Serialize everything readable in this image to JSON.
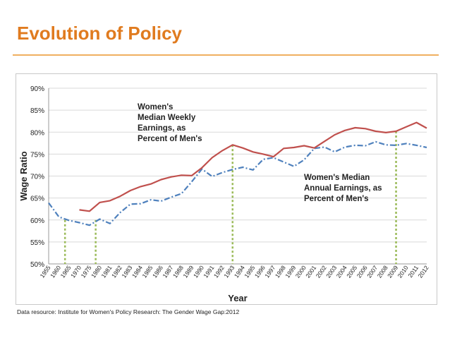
{
  "slide": {
    "title": "Evolution of Policy",
    "source": "Data resource: Institute for Women's Policy Research: The Gender Wage Gap:2012"
  },
  "colors": {
    "title": "#e07b1f",
    "weekly": "#c0504d",
    "annual": "#4f81bd",
    "marker": "#9bbb59",
    "grid": "#d9d9d9"
  },
  "chart_data": {
    "type": "line",
    "title": "",
    "xlabel": "Year",
    "ylabel": "Wage Ratio",
    "ylim": [
      50,
      90
    ],
    "yticks": [
      "50%",
      "55%",
      "60%",
      "65%",
      "70%",
      "75%",
      "80%",
      "85%",
      "90%"
    ],
    "grid": true,
    "categories": [
      "1955",
      "1960",
      "1965",
      "1970",
      "1975",
      "1980",
      "1981",
      "1982",
      "1983",
      "1984",
      "1985",
      "1986",
      "1987",
      "1988",
      "1989",
      "1990",
      "1991",
      "1992",
      "1993",
      "1994",
      "1995",
      "1996",
      "1997",
      "1998",
      "1999",
      "2000",
      "2001",
      "2002",
      "2003",
      "2004",
      "2005",
      "2006",
      "2007",
      "2008",
      "2009",
      "2010",
      "2011",
      "2012"
    ],
    "series": [
      {
        "name": "Women's Median Weekly Earnings, as Percent of Men's",
        "style": "solid",
        "values": [
          null,
          null,
          null,
          62.3,
          62.0,
          64.0,
          64.4,
          65.4,
          66.7,
          67.6,
          68.2,
          69.2,
          69.8,
          70.2,
          70.1,
          71.9,
          74.2,
          75.8,
          77.1,
          76.4,
          75.5,
          75.0,
          74.4,
          76.3,
          76.5,
          76.9,
          76.4,
          77.9,
          79.4,
          80.4,
          81.0,
          80.8,
          80.2,
          79.9,
          80.2,
          81.2,
          82.2,
          80.9
        ]
      },
      {
        "name": "Women's Median Annual Earnings, as Percent of Men's",
        "style": "dash-dot",
        "values": [
          63.9,
          60.7,
          59.9,
          59.4,
          58.8,
          60.2,
          59.2,
          61.7,
          63.6,
          63.7,
          64.6,
          64.3,
          65.2,
          66.0,
          68.7,
          71.6,
          69.9,
          70.8,
          71.5,
          72.0,
          71.4,
          73.8,
          74.2,
          73.2,
          72.2,
          73.7,
          76.3,
          76.6,
          75.5,
          76.6,
          77.0,
          76.9,
          77.8,
          77.1,
          77.0,
          77.4,
          77.0,
          76.5
        ]
      }
    ],
    "annotations": [
      {
        "lines": [
          "Women's",
          "Median Weekly",
          "Earnings, as",
          "Percent of Men's"
        ]
      },
      {
        "lines": [
          "Women's Median",
          "Annual Earnings, as",
          "Percent of Men's"
        ]
      }
    ],
    "markers": [
      "1963",
      "1978",
      "1993",
      "2009"
    ]
  }
}
